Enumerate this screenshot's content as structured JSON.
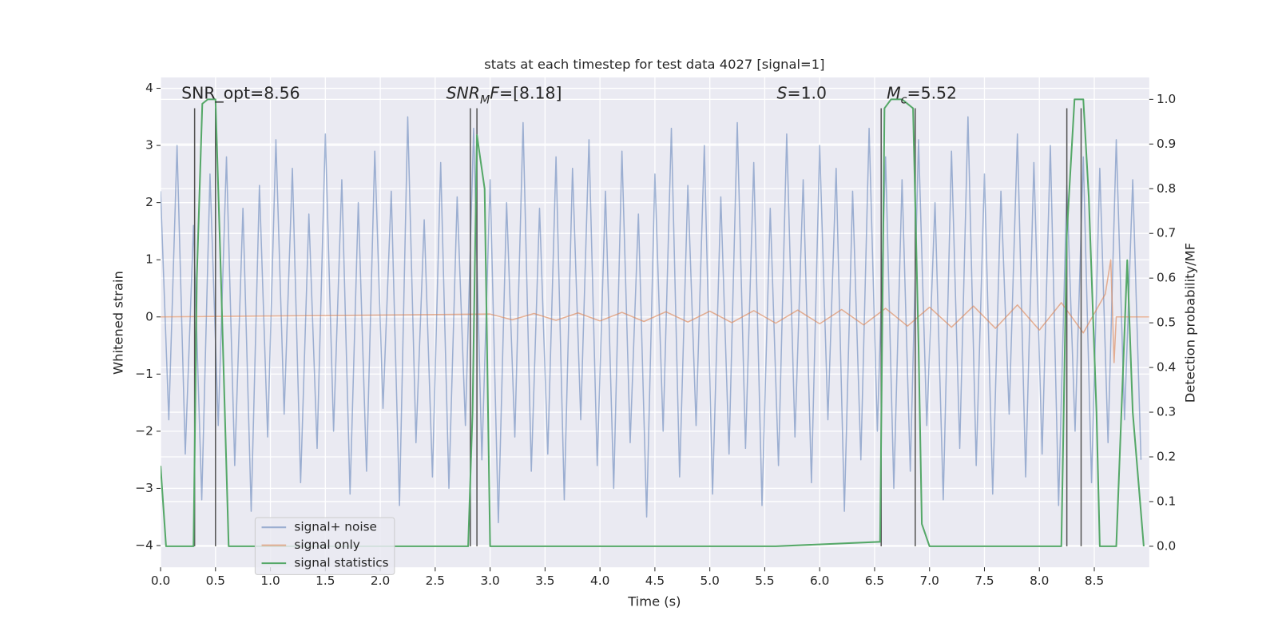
{
  "chart_data": {
    "type": "line",
    "title": "stats at each timestep for test data 4027 [signal=1]",
    "xlabel": "Time (s)",
    "ylabel": "Whitened strain",
    "y2label": "Detection probability/MF",
    "xlim": [
      0,
      9.0
    ],
    "ylim": [
      -4.38,
      4.19
    ],
    "y2lim": [
      -0.047,
      1.049
    ],
    "xticks": [
      {
        "value": 0,
        "label": "0.0"
      },
      {
        "value": 0.5,
        "label": "0.5"
      },
      {
        "value": 1,
        "label": "1.0"
      },
      {
        "value": 1.5,
        "label": "1.5"
      },
      {
        "value": 2,
        "label": "2.0"
      },
      {
        "value": 2.5,
        "label": "2.5"
      },
      {
        "value": 3,
        "label": "3.0"
      },
      {
        "value": 3.5,
        "label": "3.5"
      },
      {
        "value": 4,
        "label": "4.0"
      },
      {
        "value": 4.5,
        "label": "4.5"
      },
      {
        "value": 5,
        "label": "5.0"
      },
      {
        "value": 5.5,
        "label": "5.5"
      },
      {
        "value": 6,
        "label": "6.0"
      },
      {
        "value": 6.5,
        "label": "6.5"
      },
      {
        "value": 7,
        "label": "7.0"
      },
      {
        "value": 7.5,
        "label": "7.5"
      },
      {
        "value": 8,
        "label": "8.0"
      },
      {
        "value": 8.5,
        "label": "8.5"
      }
    ],
    "yticks": [
      {
        "value": -4,
        "label": "−4"
      },
      {
        "value": -3,
        "label": "−3"
      },
      {
        "value": -2,
        "label": "−2"
      },
      {
        "value": -1,
        "label": "−1"
      },
      0,
      1,
      2,
      3,
      4
    ],
    "y2ticks": [
      {
        "value": 0,
        "label": "0.0"
      },
      {
        "value": 0.1,
        "label": "0.1"
      },
      {
        "value": 0.2,
        "label": "0.2"
      },
      {
        "value": 0.3,
        "label": "0.3"
      },
      {
        "value": 0.4,
        "label": "0.4"
      },
      {
        "value": 0.5,
        "label": "0.5"
      },
      {
        "value": 0.6,
        "label": "0.6"
      },
      {
        "value": 0.7,
        "label": "0.7"
      },
      {
        "value": 0.8,
        "label": "0.8"
      },
      {
        "value": 0.9,
        "label": "0.9"
      },
      {
        "value": 1.0,
        "label": "1.0"
      }
    ],
    "grid": true,
    "legend": "lower left",
    "series": [
      {
        "name": "signal+ noise",
        "color": "#4c72b0",
        "opacity": 0.5,
        "x": [
          0,
          0.075,
          0.15,
          0.225,
          0.3,
          0.375,
          0.45,
          0.525,
          0.6,
          0.675,
          0.75,
          0.825,
          0.9,
          0.975,
          1.05,
          1.125,
          1.2,
          1.275,
          1.35,
          1.425,
          1.5,
          1.575,
          1.65,
          1.725,
          1.8,
          1.875,
          1.95,
          2.025,
          2.1,
          2.175,
          2.25,
          2.325,
          2.4,
          2.475,
          2.55,
          2.625,
          2.7,
          2.775,
          2.85,
          2.925,
          3.0,
          3.075,
          3.15,
          3.225,
          3.3,
          3.375,
          3.45,
          3.525,
          3.6,
          3.675,
          3.75,
          3.825,
          3.9,
          3.975,
          4.05,
          4.125,
          4.2,
          4.275,
          4.35,
          4.425,
          4.5,
          4.575,
          4.65,
          4.725,
          4.8,
          4.875,
          4.95,
          5.025,
          5.1,
          5.175,
          5.25,
          5.325,
          5.4,
          5.475,
          5.55,
          5.625,
          5.7,
          5.775,
          5.85,
          5.925,
          6.0,
          6.075,
          6.15,
          6.225,
          6.3,
          6.375,
          6.45,
          6.525,
          6.6,
          6.675,
          6.75,
          6.825,
          6.9,
          6.975,
          7.05,
          7.125,
          7.2,
          7.275,
          7.35,
          7.425,
          7.5,
          7.575,
          7.65,
          7.725,
          7.8,
          7.875,
          7.95,
          8.025,
          8.1,
          8.175,
          8.25,
          8.325,
          8.4,
          8.475,
          8.55,
          8.625,
          8.7,
          8.775,
          8.85,
          8.925
        ],
        "values": [
          2.2,
          -1.8,
          3.0,
          -2.4,
          1.6,
          -3.2,
          2.5,
          -1.9,
          2.8,
          -2.6,
          1.9,
          -3.4,
          2.3,
          -2.1,
          3.1,
          -1.7,
          2.6,
          -2.9,
          1.8,
          -2.3,
          3.2,
          -2.0,
          2.4,
          -3.1,
          2.0,
          -2.7,
          2.9,
          -1.6,
          2.2,
          -3.3,
          3.5,
          -2.2,
          1.7,
          -2.8,
          2.7,
          -3.0,
          2.1,
          -1.9,
          3.3,
          -2.5,
          2.4,
          -3.6,
          2.0,
          -2.1,
          3.4,
          -2.7,
          1.9,
          -2.4,
          2.8,
          -3.2,
          2.6,
          -1.8,
          3.1,
          -2.6,
          2.2,
          -3.0,
          2.9,
          -2.2,
          1.8,
          -3.5,
          2.5,
          -2.0,
          3.3,
          -2.8,
          2.3,
          -1.9,
          3.0,
          -3.1,
          2.1,
          -2.4,
          3.4,
          -2.3,
          2.7,
          -3.3,
          1.9,
          -2.6,
          3.2,
          -2.1,
          2.4,
          -2.9,
          3.0,
          -1.8,
          2.6,
          -3.4,
          2.2,
          -2.5,
          3.3,
          -2.0,
          2.8,
          -3.0,
          2.4,
          -2.7,
          3.1,
          -1.9,
          2.0,
          -3.2,
          2.9,
          -2.3,
          3.5,
          -2.6,
          2.5,
          -3.1,
          2.2,
          -1.7,
          3.2,
          -2.8,
          2.7,
          -2.4,
          3.0,
          -3.3,
          2.3,
          -2.0,
          2.8,
          -2.9,
          2.6,
          -2.2,
          3.1,
          -1.8,
          2.4,
          -2.5
        ]
      },
      {
        "name": "signal only",
        "color": "#dd8452",
        "opacity": 0.6,
        "x": [
          0,
          3.0,
          3.2,
          3.4,
          3.6,
          3.8,
          4.0,
          4.2,
          4.4,
          4.6,
          4.8,
          5.0,
          5.2,
          5.4,
          5.6,
          5.8,
          6.0,
          6.2,
          6.4,
          6.6,
          6.8,
          7.0,
          7.2,
          7.4,
          7.6,
          7.8,
          8.0,
          8.2,
          8.4,
          8.6,
          8.65,
          8.68,
          8.7,
          9.0
        ],
        "values": [
          0,
          0.05,
          -0.05,
          0.06,
          -0.06,
          0.07,
          -0.07,
          0.08,
          -0.08,
          0.09,
          -0.09,
          0.1,
          -0.1,
          0.11,
          -0.11,
          0.12,
          -0.12,
          0.13,
          -0.14,
          0.15,
          -0.16,
          0.17,
          -0.18,
          0.19,
          -0.2,
          0.21,
          -0.23,
          0.25,
          -0.28,
          0.4,
          1.0,
          -0.8,
          0,
          0
        ]
      },
      {
        "name": "signal statistics",
        "color": "#55a868",
        "opacity": 1,
        "axis": "y2",
        "x": [
          0,
          0.05,
          0.3,
          0.33,
          0.38,
          0.43,
          0.5,
          0.55,
          0.62,
          2.8,
          2.84,
          2.88,
          2.95,
          3.0,
          5.6,
          6.55,
          6.59,
          6.65,
          6.75,
          6.85,
          6.9,
          6.93,
          7.0,
          8.2,
          8.25,
          8.32,
          8.4,
          8.45,
          8.52,
          8.55,
          8.7,
          8.8,
          8.85,
          8.95
        ],
        "values": [
          0.18,
          0,
          0,
          0.6,
          0.99,
          1.0,
          1.0,
          0.6,
          0,
          0,
          0.3,
          0.92,
          0.8,
          0,
          0,
          0.01,
          0.98,
          1.0,
          1.0,
          0.98,
          0.45,
          0.05,
          0,
          0,
          0.7,
          1.0,
          1.0,
          0.78,
          0.3,
          0,
          0,
          0.64,
          0.3,
          0
        ]
      }
    ],
    "markers": {
      "x": [
        0.31,
        0.5,
        2.82,
        2.88,
        6.56,
        6.87,
        8.25,
        8.38
      ],
      "color": "#555555"
    },
    "annotations": [
      {
        "x": 0.19,
        "y": 3.9,
        "parts": [
          {
            "t": "SNR_opt=8.56"
          }
        ]
      },
      {
        "x": 2.6,
        "y": 3.9,
        "parts": [
          {
            "t": "SNR",
            "style": "italic"
          },
          {
            "t": "M",
            "style": "sub"
          },
          {
            "t": "F",
            "style": "italic"
          },
          {
            "t": "=[8.18]"
          }
        ]
      },
      {
        "x": 5.61,
        "y": 3.9,
        "parts": [
          {
            "t": "S",
            "style": "italic"
          },
          {
            "t": "=1.0"
          }
        ]
      },
      {
        "x": 6.61,
        "y": 3.9,
        "parts": [
          {
            "t": "M",
            "style": "italic"
          },
          {
            "t": "c",
            "style": "sub"
          },
          {
            "t": "=5.52"
          }
        ]
      }
    ]
  }
}
